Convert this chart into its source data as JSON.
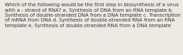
{
  "text": "Which of the following would be the first step in biosynthesis of a virus with a - strand of RNA? a. Synthesis of DNA from an RNA template b. Synthesis of double-stranded DNA from a DNA template c. Transcription of mRNA from DNA d. Synthesis of double-stranded RNA from an RNA template e. Synthesis of double-stranded RNA from a DNA template",
  "background_color": "#ede9e3",
  "text_color": "#333333",
  "font_size": 5.0,
  "fig_width": 2.62,
  "fig_height": 0.79,
  "dpi": 100
}
